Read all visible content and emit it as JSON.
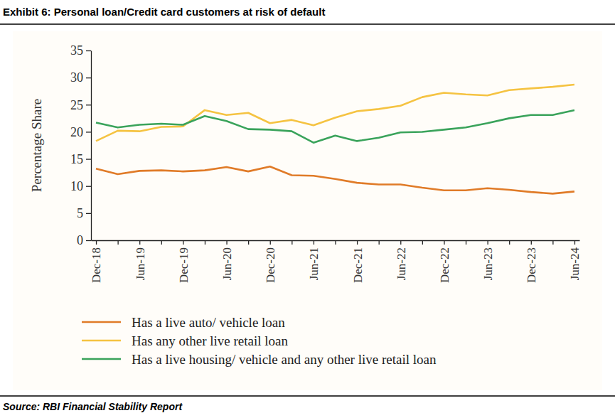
{
  "chart_data": {
    "type": "line",
    "title": "Exhibit 6: Personal loan/Credit card customers at risk of default",
    "source": "Source: RBI Financial Stability Report",
    "y_label": "Percentage Share",
    "categories": [
      "Dec-18",
      null,
      "Jun-19",
      null,
      "Dec-19",
      null,
      "Jun-20",
      null,
      "Dec-20",
      null,
      "Jun-21",
      null,
      "Dec-21",
      null,
      "Jun-22",
      null,
      "Dec-22",
      null,
      "Jun-23",
      null,
      "Dec-23",
      null,
      "Jun-24"
    ],
    "series": [
      {
        "name": "Has a live auto/ vehicle loan",
        "color": "#e07b28",
        "values": [
          13.2,
          12.2,
          12.8,
          12.9,
          12.7,
          12.9,
          13.5,
          12.7,
          13.6,
          12.0,
          11.9,
          11.3,
          10.6,
          10.3,
          10.3,
          9.7,
          9.2,
          9.2,
          9.6,
          9.3,
          8.9,
          8.6,
          9.0
        ]
      },
      {
        "name": "Has any other live retail loan",
        "color": "#f5c342",
        "values": [
          18.3,
          20.2,
          20.1,
          20.9,
          21.0,
          24.0,
          23.1,
          23.5,
          21.6,
          22.2,
          21.2,
          22.6,
          23.8,
          24.2,
          24.8,
          26.4,
          27.2,
          26.9,
          26.7,
          27.7,
          28.0,
          28.3,
          28.7
        ]
      },
      {
        "name": "Has a live housing/ vehicle and any other live retail loan",
        "color": "#3aa35b",
        "values": [
          21.7,
          20.8,
          21.3,
          21.5,
          21.3,
          22.9,
          22.0,
          20.5,
          20.4,
          20.1,
          18.0,
          19.3,
          18.3,
          18.9,
          19.9,
          20.0,
          20.4,
          20.8,
          21.6,
          22.5,
          23.1,
          23.1,
          24.0
        ]
      }
    ],
    "ylim": [
      0,
      35
    ],
    "yticks": [
      0,
      5,
      10,
      15,
      20,
      25,
      30,
      35
    ],
    "grid": false,
    "legend": "bottom"
  }
}
